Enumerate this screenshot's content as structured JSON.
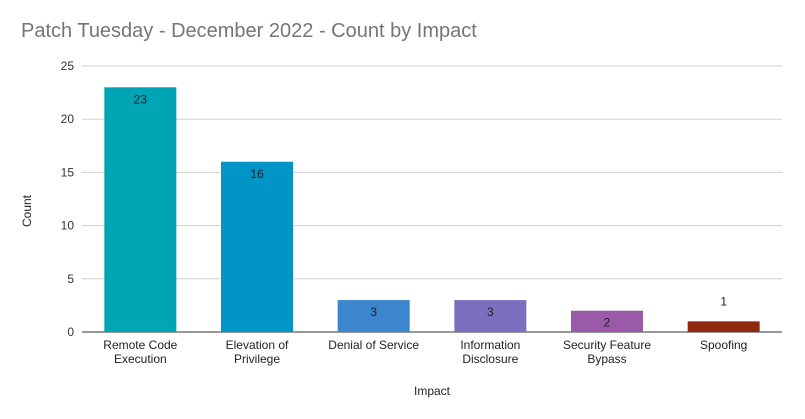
{
  "chart_data": {
    "type": "bar",
    "title": "Patch Tuesday - December 2022 - Count by Impact",
    "xlabel": "Impact",
    "ylabel": "Count",
    "ylim": [
      0,
      25
    ],
    "yticks": [
      0,
      5,
      10,
      15,
      20,
      25
    ],
    "grid": true,
    "legend": "none",
    "categories": [
      [
        "Remote Code",
        "Execution"
      ],
      [
        "Elevation of",
        "Privilege"
      ],
      [
        "Denial of Service"
      ],
      [
        "Information",
        "Disclosure"
      ],
      [
        "Security Feature",
        "Bypass"
      ],
      [
        "Spoofing"
      ]
    ],
    "values": [
      23,
      16,
      3,
      3,
      2,
      1
    ],
    "colors": [
      "#00a5b5",
      "#0094c7",
      "#3b86cc",
      "#7b6fbf",
      "#9b5aa8",
      "#8f2a0e"
    ]
  }
}
